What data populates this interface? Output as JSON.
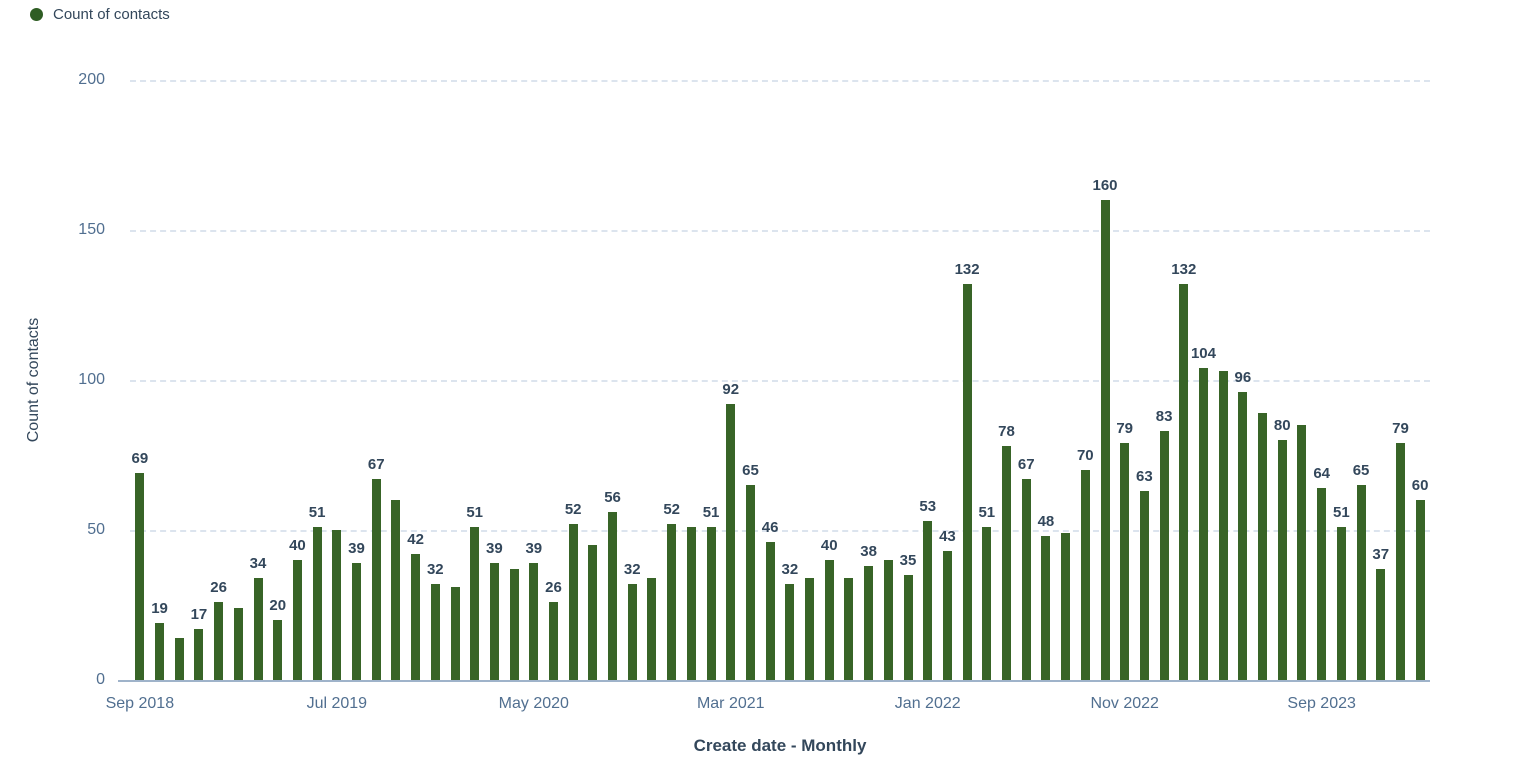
{
  "legend": {
    "label": "Count of contacts",
    "dot_color": "#2f5d24"
  },
  "colors": {
    "bar": "#386427",
    "data_label": "#33475b",
    "tick_label": "#516f90",
    "gridline": "#dce4ee",
    "axis_line": "#9fb3ca"
  },
  "chart_data": {
    "type": "bar",
    "title": "",
    "series_name": "Count of contacts",
    "xlabel": "Create date - Monthly",
    "ylabel": "Count of contacts",
    "ylim": [
      0,
      200
    ],
    "y_ticks": [
      0,
      50,
      100,
      150,
      200
    ],
    "grid": "horizontal dashed",
    "legend_position": "top-left",
    "x_tick_labels": [
      "Sep 2018",
      "Jul 2019",
      "May 2020",
      "Mar 2021",
      "Jan 2022",
      "Nov 2022",
      "Sep 2023"
    ],
    "x_tick_every": 10,
    "x": [
      "Sep 2018",
      "Oct 2018",
      "Nov 2018",
      "Dec 2018",
      "Jan 2019",
      "Feb 2019",
      "Mar 2019",
      "Apr 2019",
      "May 2019",
      "Jun 2019",
      "Jul 2019",
      "Aug 2019",
      "Sep 2019",
      "Oct 2019",
      "Nov 2019",
      "Dec 2019",
      "Jan 2020",
      "Feb 2020",
      "Mar 2020",
      "Apr 2020",
      "May 2020",
      "Jun 2020",
      "Jul 2020",
      "Aug 2020",
      "Sep 2020",
      "Oct 2020",
      "Nov 2020",
      "Dec 2020",
      "Jan 2021",
      "Feb 2021",
      "Mar 2021",
      "Apr 2021",
      "May 2021",
      "Jun 2021",
      "Jul 2021",
      "Aug 2021",
      "Sep 2021",
      "Oct 2021",
      "Nov 2021",
      "Dec 2021",
      "Jan 2022",
      "Feb 2022",
      "Mar 2022",
      "Apr 2022",
      "May 2022",
      "Jun 2022",
      "Jul 2022",
      "Aug 2022",
      "Sep 2022",
      "Oct 2022",
      "Nov 2022",
      "Dec 2022",
      "Jan 2023",
      "Feb 2023",
      "Mar 2023",
      "Apr 2023",
      "May 2023",
      "Jun 2023",
      "Jul 2023",
      "Aug 2023",
      "Sep 2023",
      "Oct 2023",
      "Nov 2023",
      "Dec 2023",
      "Jan 2024",
      "Feb 2024"
    ],
    "values": [
      69,
      19,
      14,
      17,
      26,
      24,
      34,
      20,
      40,
      51,
      50,
      39,
      67,
      60,
      42,
      32,
      31,
      51,
      39,
      37,
      39,
      26,
      52,
      45,
      56,
      32,
      34,
      52,
      51,
      51,
      92,
      65,
      46,
      32,
      34,
      40,
      34,
      38,
      40,
      35,
      53,
      43,
      132,
      51,
      78,
      67,
      48,
      49,
      70,
      160,
      79,
      63,
      83,
      132,
      104,
      103,
      96,
      89,
      80,
      85,
      64,
      51,
      65,
      37,
      79,
      60
    ],
    "labels_shown": [
      true,
      true,
      false,
      true,
      true,
      false,
      true,
      true,
      true,
      true,
      false,
      true,
      true,
      false,
      true,
      true,
      false,
      true,
      true,
      false,
      true,
      true,
      true,
      false,
      true,
      true,
      false,
      true,
      false,
      true,
      true,
      true,
      true,
      true,
      false,
      true,
      false,
      true,
      false,
      true,
      true,
      true,
      true,
      true,
      true,
      true,
      true,
      false,
      true,
      true,
      true,
      true,
      true,
      true,
      true,
      false,
      true,
      false,
      true,
      false,
      true,
      true,
      true,
      true,
      true,
      true
    ]
  }
}
